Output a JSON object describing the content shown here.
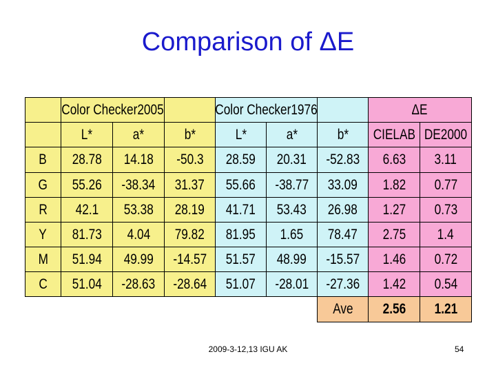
{
  "title": "Comparison of ΔE",
  "table": {
    "groups": [
      "Color Checker2005",
      "Color Checker1976",
      "ΔE"
    ],
    "columns": [
      "L*",
      "a*",
      "b*",
      "L*",
      "a*",
      "b*",
      "CIELAB",
      "DE2000"
    ],
    "rows": [
      {
        "label": "B",
        "cells": [
          "28.78",
          "14.18",
          "-50.3",
          "28.59",
          "20.31",
          "-52.83",
          "6.63",
          "3.11"
        ]
      },
      {
        "label": "G",
        "cells": [
          "55.26",
          "-38.34",
          "31.37",
          "55.66",
          "-38.77",
          "33.09",
          "1.82",
          "0.77"
        ]
      },
      {
        "label": "R",
        "cells": [
          "42.1",
          "53.38",
          "28.19",
          "41.71",
          "53.43",
          "26.98",
          "1.27",
          "0.73"
        ]
      },
      {
        "label": "Y",
        "cells": [
          "81.73",
          "4.04",
          "79.82",
          "81.95",
          "1.65",
          "78.47",
          "2.75",
          "1.4"
        ]
      },
      {
        "label": "M",
        "cells": [
          "51.94",
          "49.99",
          "-14.57",
          "51.57",
          "48.99",
          "-15.57",
          "1.46",
          "0.72"
        ]
      },
      {
        "label": "C",
        "cells": [
          "51.04",
          "-28.63",
          "-28.64",
          "51.07",
          "-28.01",
          "-27.36",
          "1.42",
          "0.54"
        ]
      }
    ],
    "average": {
      "label": "Ave",
      "cells": [
        "2.56",
        "1.21"
      ]
    }
  },
  "footer": {
    "text": "2009-3-12,13 IGU AK",
    "page": "54"
  }
}
